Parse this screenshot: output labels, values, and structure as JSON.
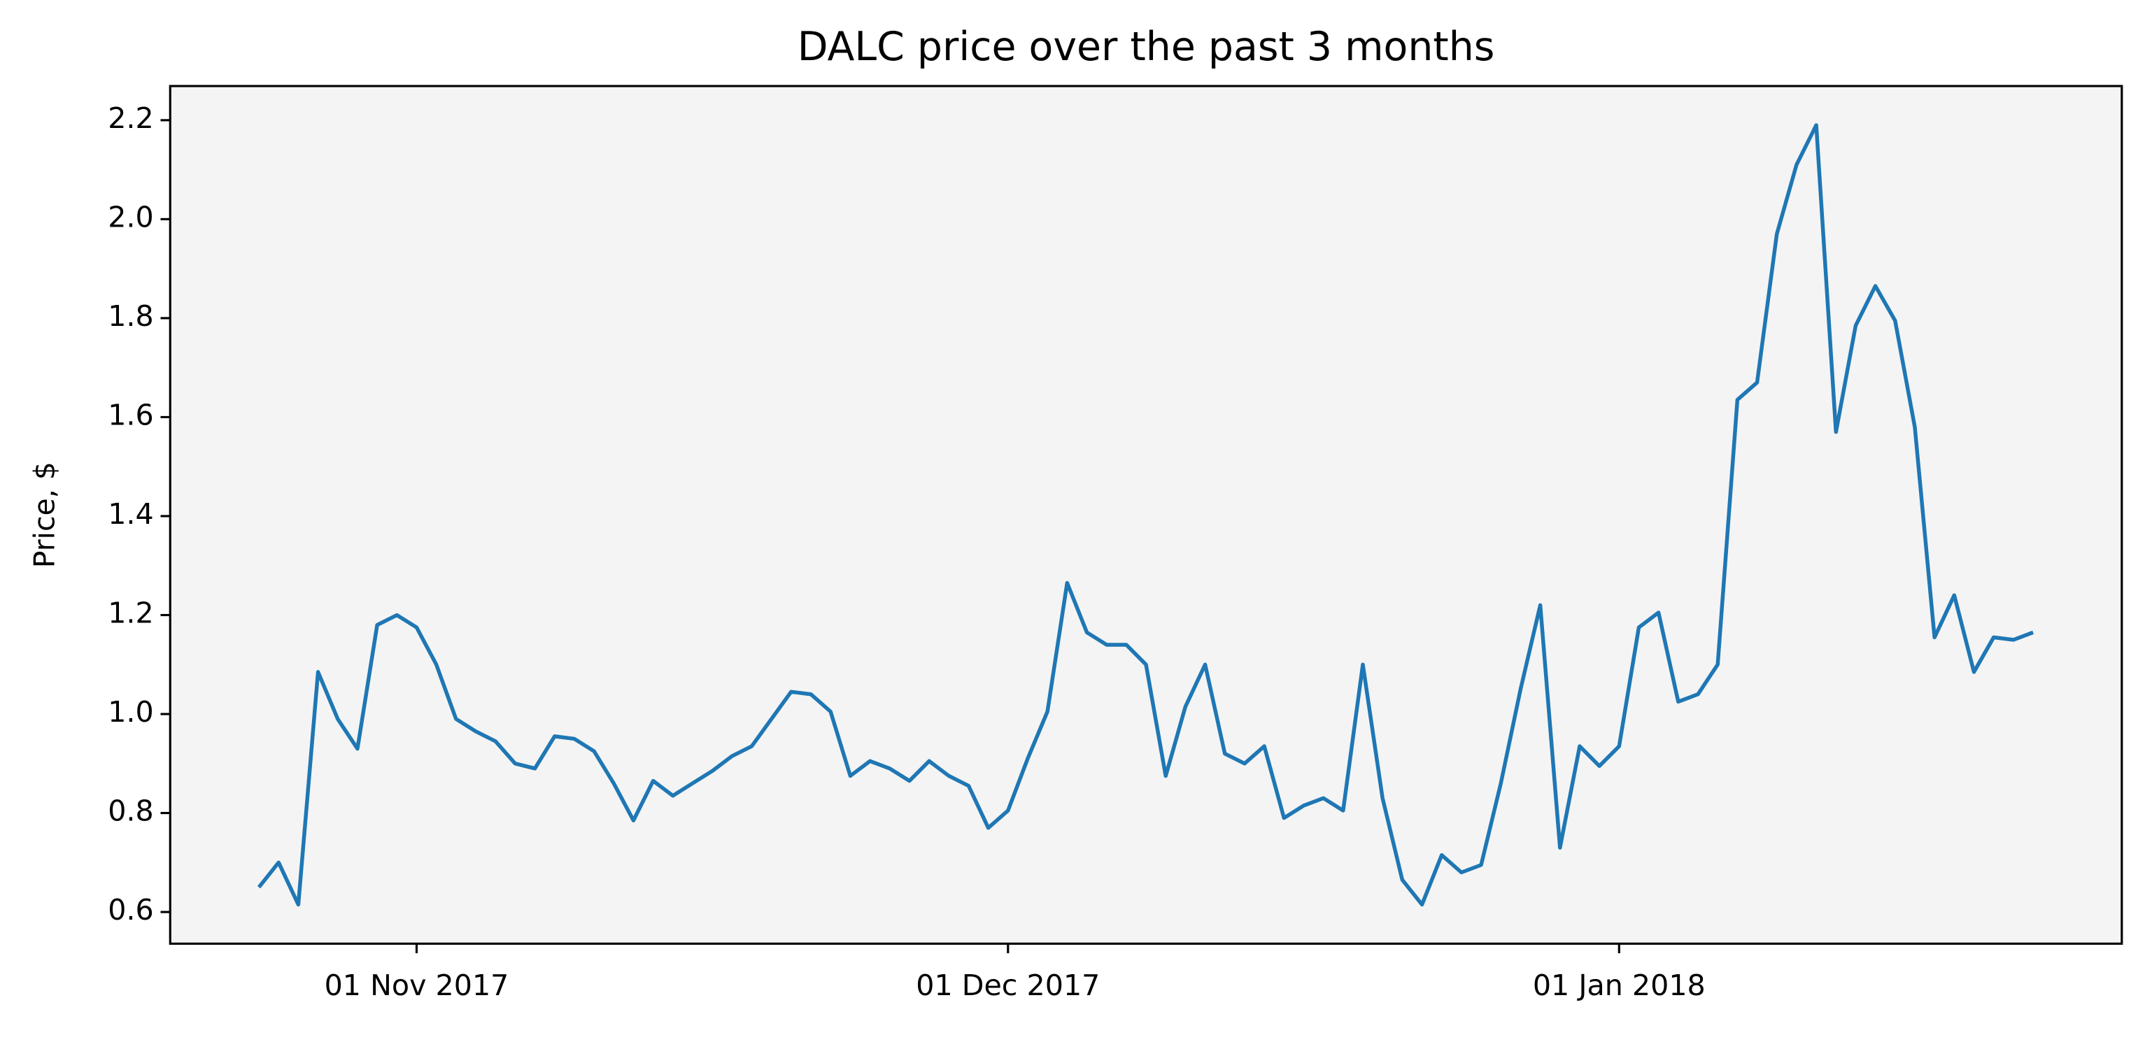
{
  "chart_data": {
    "type": "line",
    "title": "DALC price over the past 3 months",
    "ylabel": "Price, $",
    "color": "#1f77b4",
    "x": [
      "2017-10-24",
      "2017-10-25",
      "2017-10-26",
      "2017-10-27",
      "2017-10-28",
      "2017-10-29",
      "2017-10-30",
      "2017-10-31",
      "2017-11-01",
      "2017-11-02",
      "2017-11-03",
      "2017-11-04",
      "2017-11-05",
      "2017-11-06",
      "2017-11-07",
      "2017-11-08",
      "2017-11-09",
      "2017-11-10",
      "2017-11-11",
      "2017-11-12",
      "2017-11-13",
      "2017-11-14",
      "2017-11-15",
      "2017-11-16",
      "2017-11-17",
      "2017-11-18",
      "2017-11-19",
      "2017-11-20",
      "2017-11-21",
      "2017-11-22",
      "2017-11-23",
      "2017-11-24",
      "2017-11-25",
      "2017-11-26",
      "2017-11-27",
      "2017-11-28",
      "2017-11-29",
      "2017-11-30",
      "2017-12-01",
      "2017-12-02",
      "2017-12-03",
      "2017-12-04",
      "2017-12-05",
      "2017-12-06",
      "2017-12-07",
      "2017-12-08",
      "2017-12-09",
      "2017-12-10",
      "2017-12-11",
      "2017-12-12",
      "2017-12-13",
      "2017-12-14",
      "2017-12-15",
      "2017-12-16",
      "2017-12-17",
      "2017-12-18",
      "2017-12-19",
      "2017-12-20",
      "2017-12-21",
      "2017-12-22",
      "2017-12-23",
      "2017-12-24",
      "2017-12-25",
      "2017-12-26",
      "2017-12-27",
      "2017-12-28",
      "2017-12-29",
      "2017-12-30",
      "2017-12-31",
      "2018-01-01",
      "2018-01-02",
      "2018-01-03",
      "2018-01-04",
      "2018-01-05",
      "2018-01-06",
      "2018-01-07",
      "2018-01-08",
      "2018-01-09",
      "2018-01-10",
      "2018-01-11",
      "2018-01-12",
      "2018-01-13",
      "2018-01-14",
      "2018-01-15",
      "2018-01-16",
      "2018-01-17",
      "2018-01-18",
      "2018-01-19",
      "2018-01-20",
      "2018-01-21",
      "2018-01-22"
    ],
    "values": [
      0.65,
      0.7,
      0.615,
      1.085,
      0.99,
      0.93,
      1.18,
      1.2,
      1.175,
      1.1,
      0.99,
      0.965,
      0.945,
      0.9,
      0.89,
      0.955,
      0.95,
      0.925,
      0.86,
      0.785,
      0.865,
      0.835,
      0.86,
      0.885,
      0.915,
      0.935,
      0.99,
      1.045,
      1.04,
      1.005,
      0.875,
      0.905,
      0.89,
      0.865,
      0.905,
      0.875,
      0.855,
      0.77,
      0.805,
      0.91,
      1.005,
      1.265,
      1.165,
      1.14,
      1.14,
      1.1,
      0.875,
      1.015,
      1.1,
      0.92,
      0.9,
      0.935,
      0.79,
      0.815,
      0.83,
      0.805,
      1.1,
      0.83,
      0.665,
      0.615,
      0.715,
      0.68,
      0.695,
      0.86,
      1.05,
      1.22,
      0.73,
      0.935,
      0.895,
      0.935,
      1.175,
      1.205,
      1.025,
      1.04,
      1.1,
      1.635,
      1.67,
      1.97,
      2.11,
      2.19,
      1.57,
      1.785,
      1.865,
      1.795,
      1.58,
      1.155,
      1.24,
      1.085,
      1.155,
      1.15,
      1.165
    ],
    "xlim": [
      "2017-10-19T12:00Z",
      "2018-01-26T12:00Z"
    ],
    "xticks": [
      {
        "value": "2017-11-01",
        "label": "01 Nov 2017"
      },
      {
        "value": "2017-12-01",
        "label": "01 Dec 2017"
      },
      {
        "value": "2018-01-01",
        "label": "01 Jan 2018"
      }
    ],
    "ylim": [
      0.536,
      2.269
    ],
    "yticks": [
      0.6,
      0.8,
      {
        "value": 1.0,
        "label": "1.0"
      },
      1.2,
      1.4,
      1.6,
      1.8,
      {
        "value": 2.0,
        "label": "2.0"
      },
      2.2
    ],
    "background": "#f4f4f4"
  }
}
